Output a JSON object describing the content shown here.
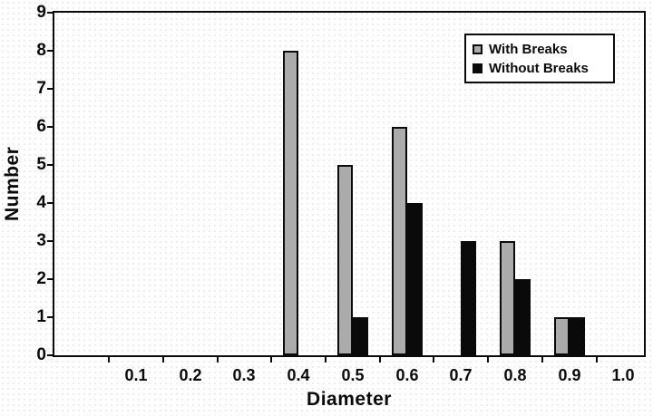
{
  "chart_data": {
    "type": "bar",
    "title": "",
    "xlabel": "Diameter",
    "ylabel": "Number",
    "categories": [
      "0.1",
      "0.2",
      "0.3",
      "0.4",
      "0.5",
      "0.6",
      "0.7",
      "0.8",
      "0.9",
      "1.0"
    ],
    "series": [
      {
        "name": "With Breaks",
        "color": "#ababab",
        "values": [
          0,
          0,
          0,
          8,
          5,
          6,
          0,
          3,
          1,
          0
        ]
      },
      {
        "name": "Without Breaks",
        "color": "#0a0a0a",
        "values": [
          0,
          0,
          0,
          0,
          1,
          4,
          3,
          2,
          1,
          0
        ]
      }
    ],
    "ylim": [
      0,
      9
    ],
    "yticks": [
      0,
      1,
      2,
      3,
      4,
      5,
      6,
      7,
      8,
      9
    ],
    "legend": {
      "position": "top-right",
      "entries": [
        "With Breaks",
        "Without Breaks"
      ]
    },
    "grid": false,
    "axis_color": "#0a0a0a",
    "plot_background": "#ffffff"
  }
}
